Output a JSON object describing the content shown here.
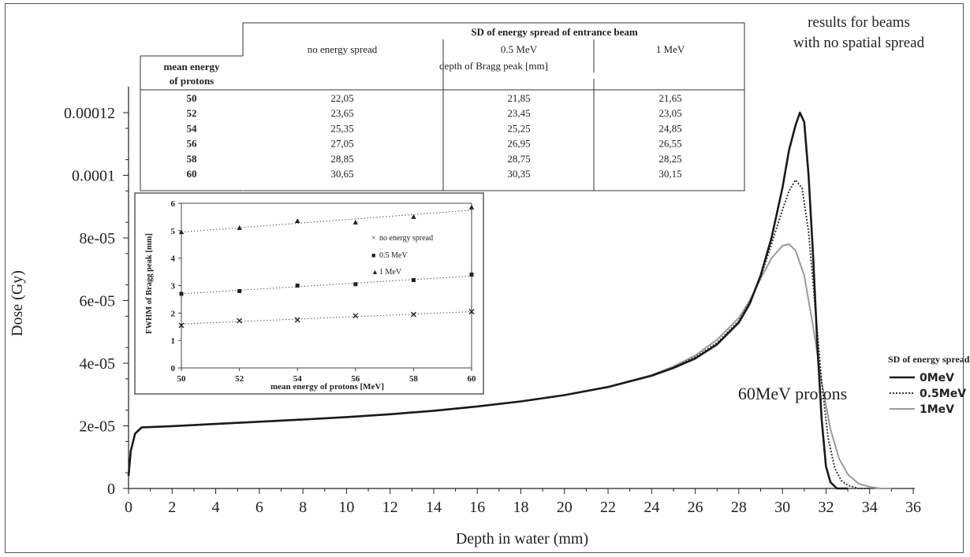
{
  "chart_data": [
    {
      "type": "line",
      "title": "60MeV protons",
      "subtitle": "results for beams with no spatial spread",
      "subtitle_lines": [
        "results for beams",
        "with no spatial spread"
      ],
      "xlabel": "Depth in water  (mm)",
      "ylabel": "Dose  (Gy)",
      "xlim": [
        0,
        36
      ],
      "ylim": [
        0,
        0.00014
      ],
      "x_ticks": [
        "0",
        "2",
        "4",
        "6",
        "8",
        "10",
        "12",
        "14",
        "16",
        "18",
        "20",
        "22",
        "24",
        "26",
        "28",
        "30",
        "32",
        "34",
        "36"
      ],
      "y_ticks": [
        "0",
        "2e-05",
        "4e-05",
        "6e-05",
        "8e-05",
        "0.0001",
        "0.00012"
      ],
      "legend_title": "SD of energy spread:",
      "legend_position": "right",
      "grid": false,
      "series": [
        {
          "name": "0MeV",
          "style": "solid",
          "color": "#1a1a1a",
          "x": [
            0,
            0.1,
            0.3,
            0.6,
            1,
            2,
            4,
            6,
            8,
            10,
            12,
            14,
            16,
            18,
            20,
            22,
            24,
            25,
            26,
            27,
            28,
            28.5,
            29,
            29.5,
            30,
            30.3,
            30.6,
            30.8,
            31.0,
            31.2,
            31.4,
            31.6,
            31.8,
            32.0,
            32.2,
            32.5,
            33
          ],
          "y": [
            4e-06,
            1.2e-05,
            1.75e-05,
            1.95e-05,
            1.96e-05,
            1.99e-05,
            2.06e-05,
            2.13e-05,
            2.2e-05,
            2.28e-05,
            2.37e-05,
            2.48e-05,
            2.62e-05,
            2.78e-05,
            2.98e-05,
            3.24e-05,
            3.6e-05,
            3.85e-05,
            4.15e-05,
            4.6e-05,
            5.3e-05,
            5.9e-05,
            6.8e-05,
            8e-05,
            9.6e-05,
            0.000108,
            0.000116,
            0.00012,
            0.000117,
            0.0001,
            7.5e-05,
            4.6e-05,
            2.2e-05,
            7e-06,
            2e-06,
            0,
            0
          ]
        },
        {
          "name": "0.5MeV",
          "style": "dotted",
          "color": "#333333",
          "x": [
            0,
            0.1,
            0.3,
            0.6,
            1,
            2,
            4,
            6,
            8,
            10,
            12,
            14,
            16,
            18,
            20,
            22,
            24,
            25,
            26,
            27,
            28,
            28.5,
            29,
            29.5,
            30,
            30.3,
            30.6,
            30.9,
            31.2,
            31.5,
            31.8,
            32.1,
            32.4,
            32.7,
            33,
            33.5,
            34
          ],
          "y": [
            4e-06,
            1.2e-05,
            1.75e-05,
            1.95e-05,
            1.96e-05,
            1.99e-05,
            2.06e-05,
            2.13e-05,
            2.2e-05,
            2.28e-05,
            2.37e-05,
            2.48e-05,
            2.62e-05,
            2.78e-05,
            2.98e-05,
            3.24e-05,
            3.6e-05,
            3.86e-05,
            4.2e-05,
            4.65e-05,
            5.35e-05,
            5.95e-05,
            6.75e-05,
            7.8e-05,
            8.9e-05,
            9.5e-05,
            9.85e-05,
            9.6e-05,
            8.2e-05,
            5.8e-05,
            3.4e-05,
            1.6e-05,
            6.5e-06,
            2.5e-06,
            1e-06,
            0,
            0
          ]
        },
        {
          "name": "1MeV",
          "style": "solid-light",
          "color": "#9a9a9a",
          "x": [
            0,
            0.1,
            0.3,
            0.6,
            1,
            2,
            4,
            6,
            8,
            10,
            12,
            14,
            16,
            18,
            20,
            22,
            24,
            25,
            26,
            27,
            28,
            28.5,
            29,
            29.5,
            30,
            30.3,
            30.6,
            31.0,
            31.4,
            31.8,
            32.2,
            32.6,
            33.0,
            33.5,
            34,
            34.5,
            35
          ],
          "y": [
            4e-06,
            1.2e-05,
            1.75e-05,
            1.95e-05,
            1.96e-05,
            1.99e-05,
            2.06e-05,
            2.13e-05,
            2.2e-05,
            2.28e-05,
            2.37e-05,
            2.48e-05,
            2.62e-05,
            2.78e-05,
            2.98e-05,
            3.25e-05,
            3.62e-05,
            3.9e-05,
            4.25e-05,
            4.75e-05,
            5.45e-05,
            6e-05,
            6.7e-05,
            7.35e-05,
            7.75e-05,
            7.8e-05,
            7.6e-05,
            6.8e-05,
            5.2e-05,
            3.4e-05,
            1.9e-05,
            9.5e-06,
            4.5e-06,
            1.5e-06,
            5e-07,
            0,
            0
          ]
        }
      ]
    },
    {
      "type": "scatter",
      "inset": true,
      "xlabel": "mean energy of protons [MeV]",
      "ylabel": "FWHM of Bragg peak [mm]",
      "xlim": [
        50,
        60
      ],
      "ylim": [
        0,
        6
      ],
      "x_ticks": [
        "50",
        "52",
        "54",
        "56",
        "58",
        "60"
      ],
      "y_ticks": [
        "0",
        "1",
        "2",
        "3",
        "4",
        "5",
        "6"
      ],
      "legend_position": "right",
      "series": [
        {
          "name": "no energy spread",
          "marker": "×",
          "x": [
            50,
            52,
            54,
            56,
            58,
            60
          ],
          "y": [
            1.55,
            1.72,
            1.75,
            1.9,
            1.95,
            2.05
          ],
          "trend": [
            1.6,
            2.05
          ]
        },
        {
          "name": "0.5 MeV",
          "marker": "■",
          "x": [
            50,
            52,
            54,
            56,
            58,
            60
          ],
          "y": [
            2.7,
            2.8,
            3.0,
            3.05,
            3.2,
            3.4
          ],
          "trend": [
            2.7,
            3.35
          ]
        },
        {
          "name": "1 MeV",
          "marker": "▲",
          "x": [
            50,
            52,
            54,
            56,
            58,
            60
          ],
          "y": [
            4.95,
            5.1,
            5.35,
            5.3,
            5.5,
            5.85
          ],
          "trend": [
            4.95,
            5.75
          ]
        }
      ]
    },
    {
      "type": "table",
      "header_group": "SD of energy spread of entrance beam",
      "row_header_lines": [
        "mean energy",
        "of protons"
      ],
      "columns": [
        "no energy spread",
        "0.5 MeV",
        "1 MeV"
      ],
      "sub_header": "depth of Bragg peak [mm]",
      "rows": [
        {
          "energy": "50",
          "values": [
            "22,05",
            "21,85",
            "21,65"
          ]
        },
        {
          "energy": "52",
          "values": [
            "23,65",
            "23,45",
            "23,05"
          ]
        },
        {
          "energy": "54",
          "values": [
            "25,35",
            "25,25",
            "24,85"
          ]
        },
        {
          "energy": "56",
          "values": [
            "27,05",
            "26,95",
            "26,55"
          ]
        },
        {
          "energy": "58",
          "values": [
            "28,85",
            "28,75",
            "28,25"
          ]
        },
        {
          "energy": "60",
          "values": [
            "30,65",
            "30,35",
            "30,15"
          ]
        }
      ]
    }
  ]
}
